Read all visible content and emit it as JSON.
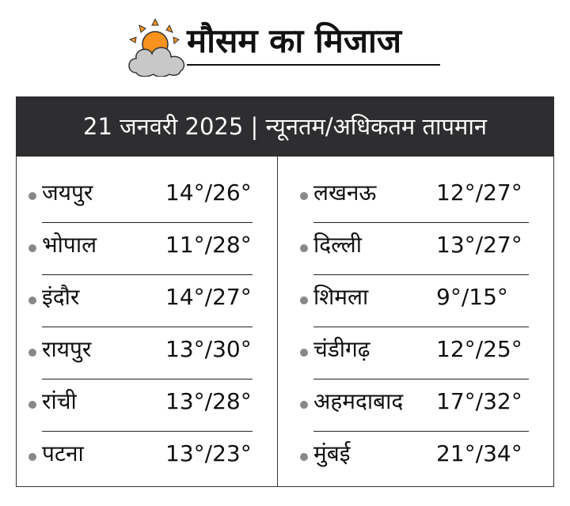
{
  "header": {
    "title": "मौसम का मिजाज",
    "icon": "sun-behind-cloud-icon"
  },
  "banner": {
    "text": "21 जनवरी 2025 | न्यूनतम/अधिकतम तापमान"
  },
  "colors": {
    "banner_bg": "#2e2d2f",
    "bullet": "#888888",
    "sun": "#f7931e",
    "cloud": "#c8c8c8"
  },
  "left_column": [
    {
      "city": "जयपुर",
      "temp": "14°/26°"
    },
    {
      "city": "भोपाल",
      "temp": "11°/28°"
    },
    {
      "city": "इंदौर",
      "temp": "14°/27°"
    },
    {
      "city": "रायपुर",
      "temp": "13°/30°"
    },
    {
      "city": "रांची",
      "temp": "13°/28°"
    },
    {
      "city": "पटना",
      "temp": "13°/23°"
    }
  ],
  "right_column": [
    {
      "city": "लखनऊ",
      "temp": "12°/27°"
    },
    {
      "city": "दिल्ली",
      "temp": "13°/27°"
    },
    {
      "city": "शिमला",
      "temp": "9°/15°"
    },
    {
      "city": "चंडीगढ़",
      "temp": "12°/25°"
    },
    {
      "city": "अहमदाबाद",
      "temp": "17°/32°"
    },
    {
      "city": "मुंबई",
      "temp": "21°/34°"
    }
  ]
}
